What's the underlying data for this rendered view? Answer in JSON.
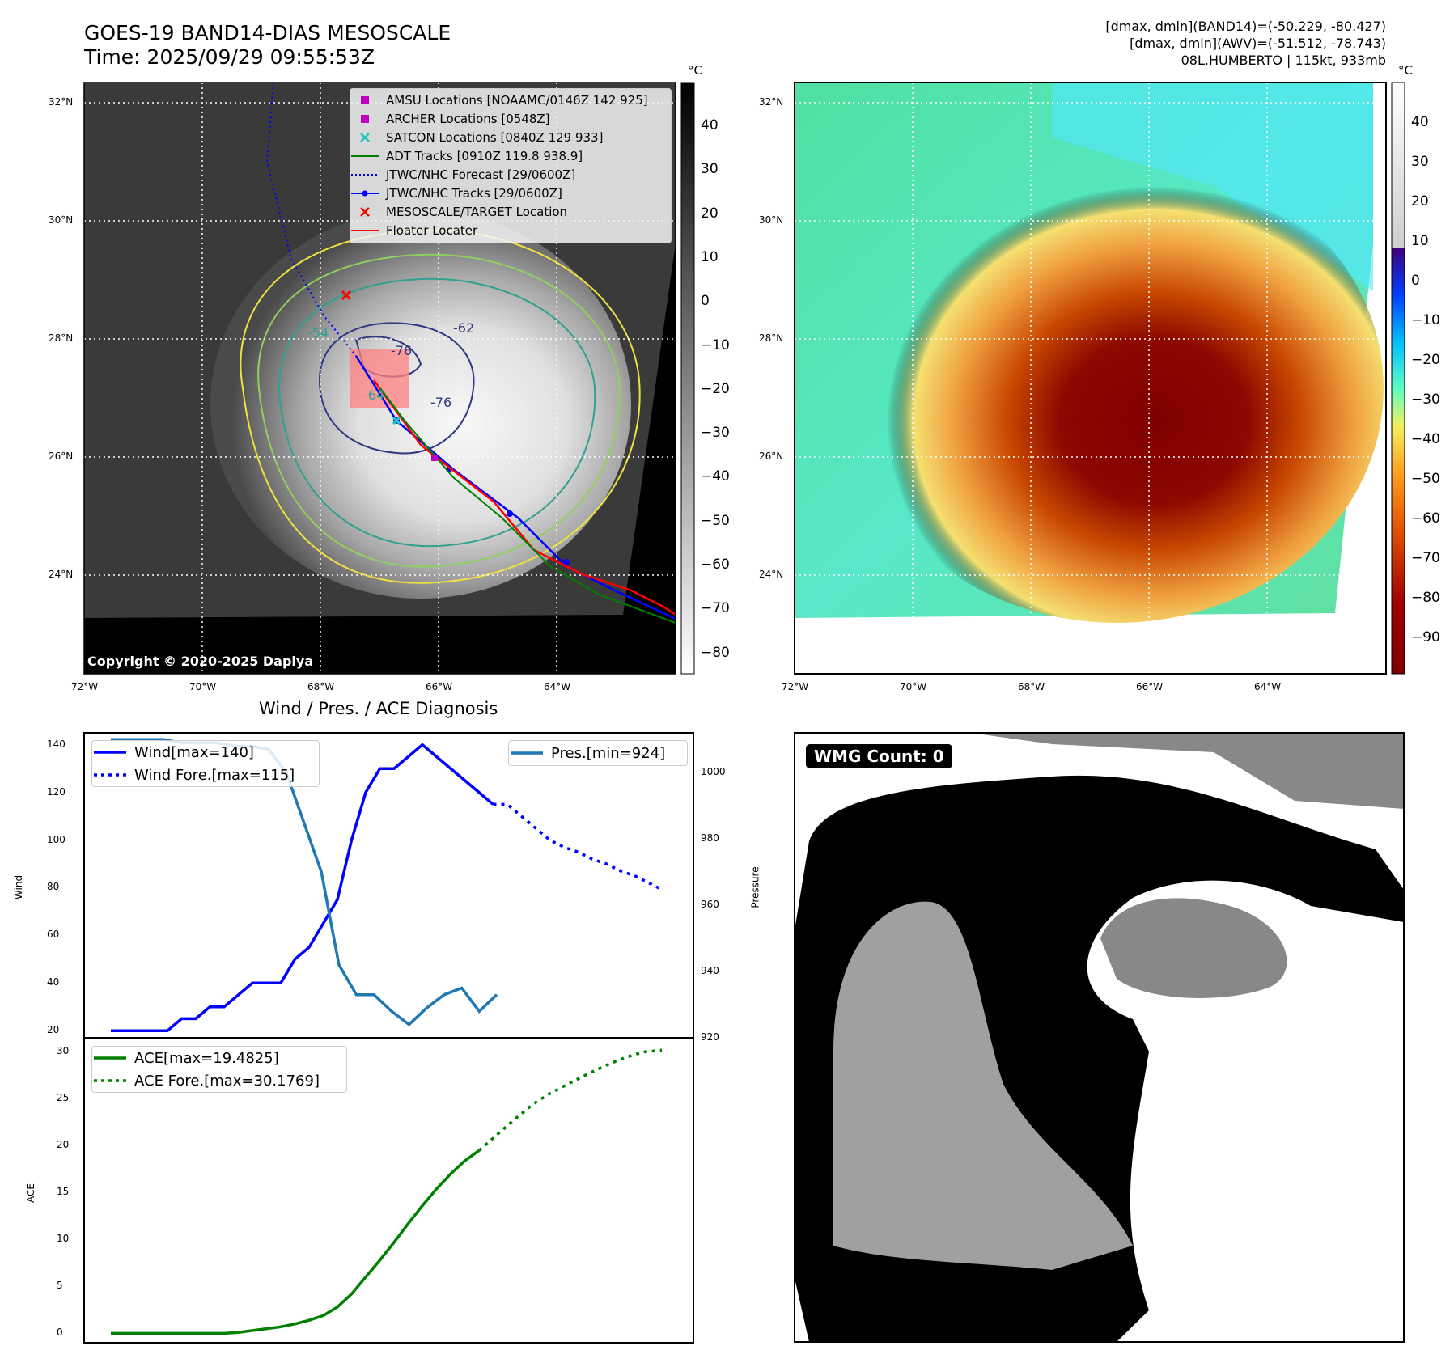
{
  "header": {
    "title_line1": "GOES-19 BAND14-DIAS MESOSCALE",
    "title_line2": "Time: 2025/09/29 09:55:53Z",
    "info_line1": "[dmax, dmin](BAND14)=(-50.229, -80.427)",
    "info_line2": "[dmax, dmin](AWV)=(-51.512, -78.743)",
    "info_line3": "08L.HUMBERTO | 115kt, 933mb"
  },
  "map_axes": {
    "lat_labels": [
      "32°N",
      "30°N",
      "28°N",
      "26°N",
      "24°N"
    ],
    "lon_labels": [
      "72°W",
      "70°W",
      "68°W",
      "66°W",
      "64°W"
    ]
  },
  "colorbar_left": {
    "unit": "°C",
    "ticks": [
      "40",
      "30",
      "20",
      "10",
      "0",
      "−10",
      "−20",
      "−30",
      "−40",
      "−50",
      "−60",
      "−70",
      "−80"
    ]
  },
  "colorbar_right": {
    "unit": "°C",
    "ticks": [
      "40",
      "30",
      "20",
      "10",
      "0",
      "−10",
      "−20",
      "−30",
      "−40",
      "−50",
      "−60",
      "−70",
      "−80",
      "−90"
    ]
  },
  "contour_labels": [
    "-54",
    "-62",
    "-76",
    "-76",
    "-64"
  ],
  "legend": [
    {
      "label": "AMSU Locations [NOAAMC/0146Z 142 925]",
      "symbol": "magenta-square-icon",
      "color": "#c000c0"
    },
    {
      "label": "ARCHER Locations [0548Z]",
      "symbol": "magenta-square-icon",
      "color": "#c000c0"
    },
    {
      "label": "SATCON Locations [0840Z 129 933]",
      "symbol": "cyan-x-icon",
      "color": "#20c0c0"
    },
    {
      "label": "ADT Tracks [0910Z 119.8 938.9]",
      "symbol": "green-line-icon",
      "color": "#008000"
    },
    {
      "label": "JTWC/NHC Forecast [29/0600Z]",
      "symbol": "blue-dotted-line-icon",
      "color": "#0000ff"
    },
    {
      "label": "JTWC/NHC Tracks [29/0600Z]",
      "symbol": "blue-dot-line-icon",
      "color": "#0000ff"
    },
    {
      "label": "MESOSCALE/TARGET Location",
      "symbol": "red-x-icon",
      "color": "#ff0000"
    },
    {
      "label": "Floater Locater",
      "symbol": "red-line-icon",
      "color": "#ff0000"
    }
  ],
  "copyright": "Copyright © 2020-2025 Dapiya",
  "wmg": "WMG Count: 0",
  "chart_data": [
    {
      "type": "line",
      "title": "Wind / Pres. / ACE Diagnosis",
      "ylabel": "Wind",
      "ylabel_right": "Pressure",
      "ylim": [
        17,
        145
      ],
      "ylim_right": [
        920,
        1012
      ],
      "y_ticks": [
        "140",
        "120",
        "100",
        "80",
        "60",
        "40",
        "20"
      ],
      "y_ticks_right": [
        "1000",
        "980",
        "960",
        "940",
        "920"
      ],
      "series": [
        {
          "name": "Wind[max=140]",
          "color": "#0000ff",
          "style": "solid",
          "values": [
            20,
            20,
            20,
            20,
            20,
            25,
            25,
            30,
            30,
            35,
            40,
            40,
            40,
            50,
            55,
            65,
            75,
            100,
            120,
            130,
            130,
            135,
            140,
            135,
            130,
            125,
            120,
            115
          ]
        },
        {
          "name": "Wind Fore.[max=115]",
          "color": "#0000ff",
          "style": "dotted",
          "values": [
            115,
            115,
            110,
            105,
            100,
            97,
            95,
            92,
            90,
            87,
            85,
            82,
            79
          ]
        },
        {
          "name": "Pres.[min=924]",
          "color": "#1f77b4",
          "style": "solid",
          "axis": "right",
          "values": [
            1010,
            1010,
            1010,
            1010,
            1009,
            1009,
            1009,
            1008,
            1008,
            1007,
            1000,
            985,
            970,
            942,
            933,
            933,
            928,
            924,
            929,
            933,
            935,
            928,
            933
          ]
        }
      ]
    },
    {
      "type": "line",
      "ylabel": "ACE",
      "ylim": [
        -1,
        31.5
      ],
      "y_ticks": [
        "30",
        "25",
        "20",
        "15",
        "10",
        "5",
        "0"
      ],
      "series": [
        {
          "name": "ACE[max=19.4825]",
          "color": "#008000",
          "style": "solid",
          "values": [
            0,
            0,
            0,
            0,
            0,
            0,
            0,
            0,
            0,
            0.1,
            0.3,
            0.5,
            0.7,
            1.0,
            1.4,
            1.9,
            2.8,
            4.2,
            6.0,
            7.8,
            9.7,
            11.7,
            13.6,
            15.4,
            17.0,
            18.4,
            19.48
          ]
        },
        {
          "name": "ACE Fore.[max=30.1769]",
          "color": "#008000",
          "style": "dotted",
          "values": [
            19.48,
            21.2,
            22.9,
            24.5,
            25.7,
            26.7,
            27.7,
            28.6,
            29.4,
            30.0,
            30.18
          ]
        }
      ]
    }
  ]
}
